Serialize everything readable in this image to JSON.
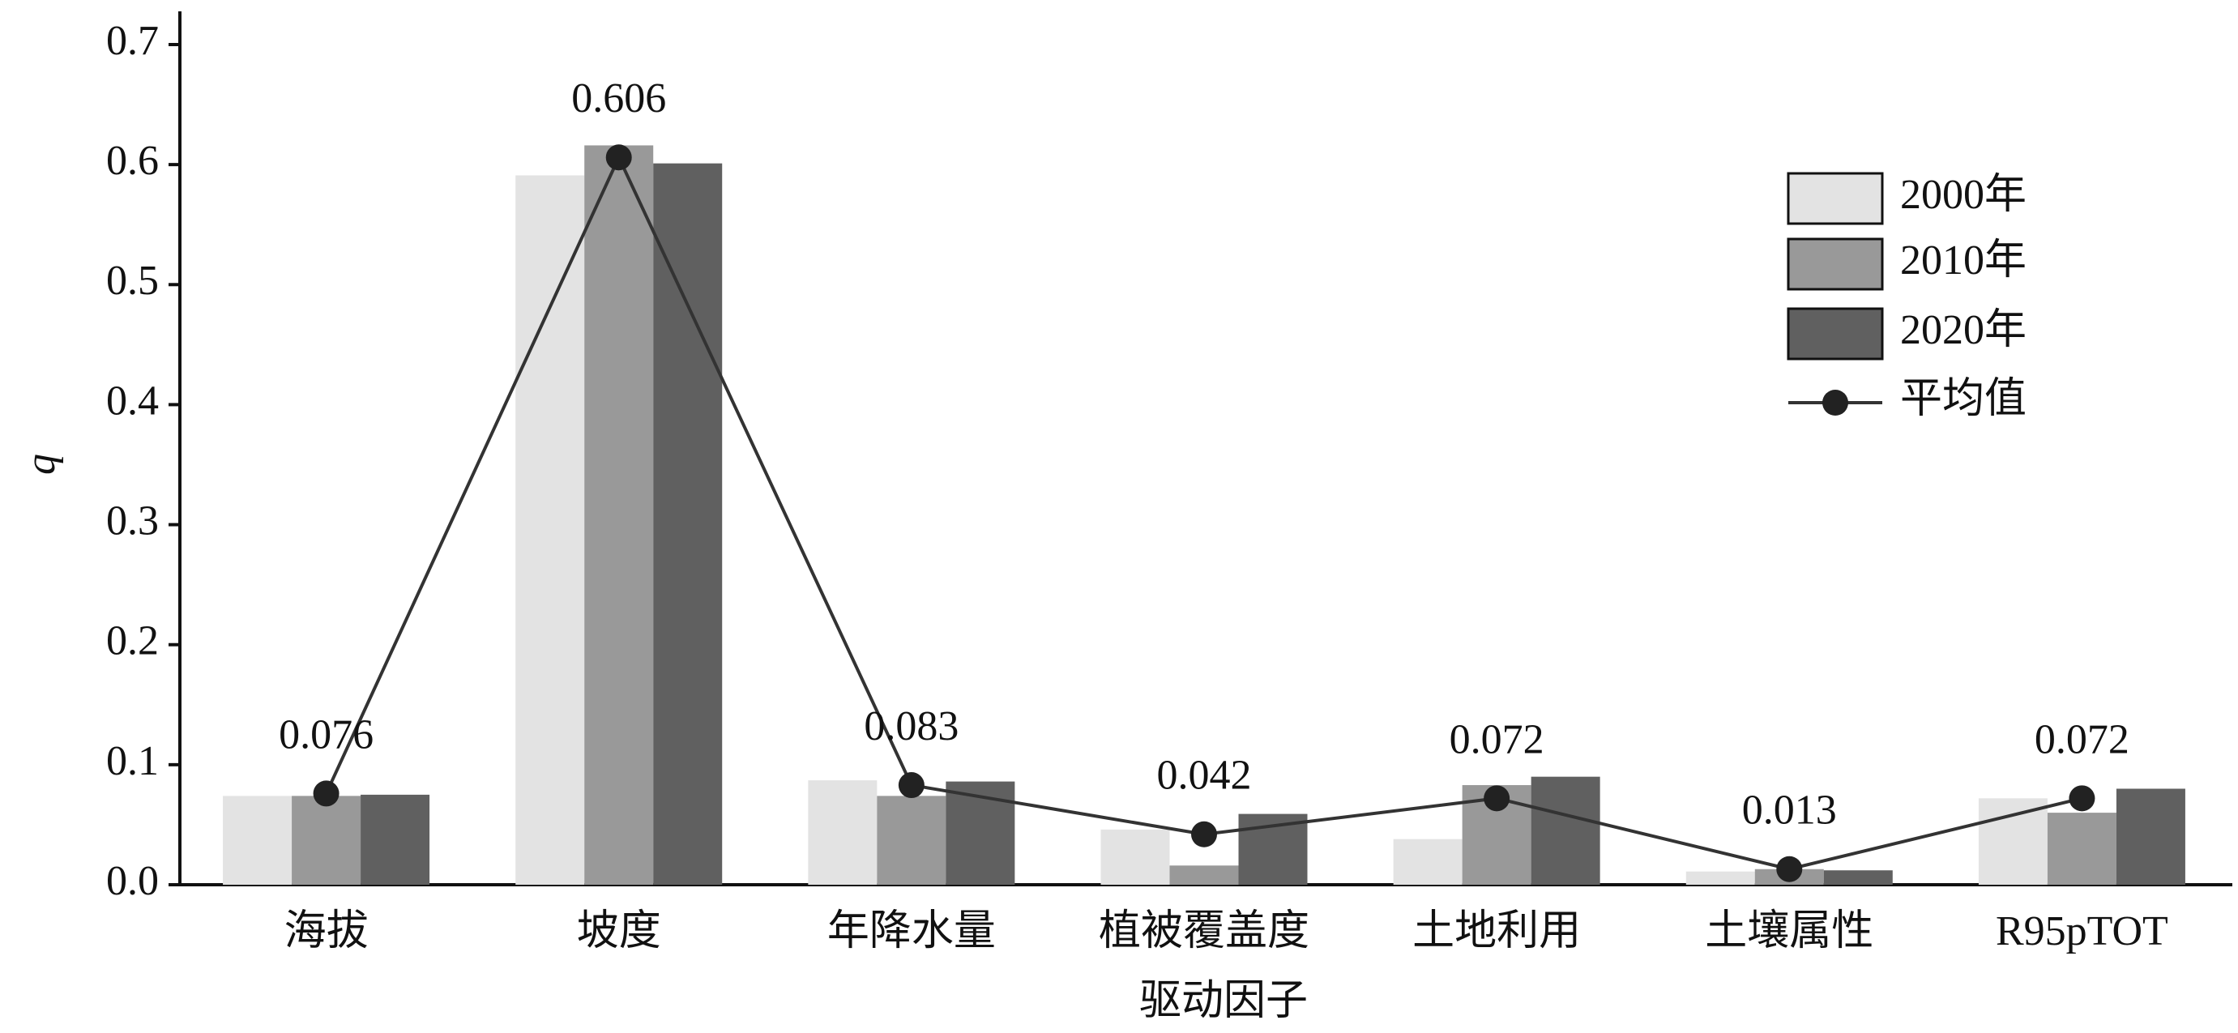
{
  "chart_data": {
    "type": "bar",
    "xlabel": "驱动因子",
    "ylabel": "q",
    "categories": [
      "海拔",
      "坡度",
      "年降水量",
      "植被覆盖度",
      "土地利用",
      "土壤属性",
      "R95pTOT"
    ],
    "series": [
      {
        "name": "2000年",
        "color": "#e3e3e3",
        "values": [
          0.074,
          0.591,
          0.087,
          0.046,
          0.038,
          0.011,
          0.072
        ]
      },
      {
        "name": "2010年",
        "color": "#999999",
        "values": [
          0.074,
          0.616,
          0.074,
          0.016,
          0.083,
          0.013,
          0.06
        ]
      },
      {
        "name": "2020年",
        "color": "#606060",
        "values": [
          0.075,
          0.601,
          0.086,
          0.059,
          0.09,
          0.012,
          0.08
        ]
      },
      {
        "name": "平均值",
        "type": "line",
        "color": "#333333",
        "values": [
          0.076,
          0.606,
          0.083,
          0.042,
          0.072,
          0.013,
          0.072
        ]
      }
    ],
    "ylim": [
      0,
      0.7
    ],
    "yticks": [
      {
        "value": 0,
        "label": "0.0"
      },
      0.1,
      0.2,
      0.3,
      0.4,
      0.5,
      0.6,
      0.7
    ],
    "legend": "upper right"
  }
}
